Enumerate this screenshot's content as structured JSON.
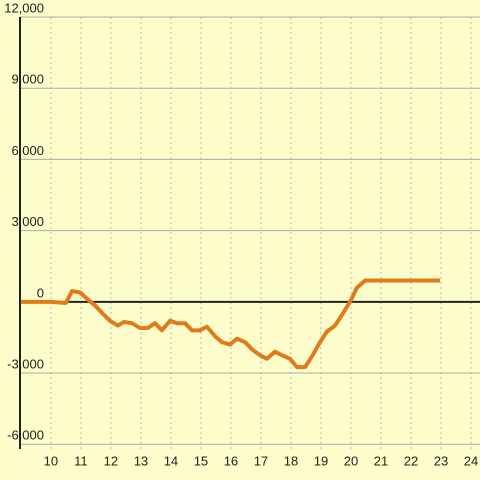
{
  "chart_data": {
    "type": "line",
    "x": [
      9.0,
      10.0,
      10.5,
      10.7,
      10.97,
      11.23,
      11.47,
      11.73,
      11.97,
      12.23,
      12.43,
      12.7,
      12.97,
      13.23,
      13.47,
      13.7,
      13.97,
      14.2,
      14.47,
      14.7,
      14.97,
      15.2,
      15.47,
      15.7,
      15.97,
      16.2,
      16.47,
      16.7,
      16.97,
      17.2,
      17.47,
      17.7,
      17.97,
      18.2,
      18.47,
      18.7,
      18.97,
      19.2,
      19.47,
      19.7,
      19.97,
      20.2,
      20.47,
      22.97
    ],
    "series": [
      {
        "color": "#e07b1c",
        "values": [
          0,
          0,
          -50,
          450,
          400,
          100,
          -150,
          -500,
          -800,
          -1000,
          -850,
          -900,
          -1100,
          -1100,
          -900,
          -1200,
          -800,
          -900,
          -900,
          -1200,
          -1200,
          -1050,
          -1450,
          -1700,
          -1800,
          -1550,
          -1700,
          -2000,
          -2250,
          -2400,
          -2100,
          -2250,
          -2400,
          -2750,
          -2750,
          -2300,
          -1700,
          -1250,
          -1000,
          -550,
          0,
          600,
          900,
          900
        ]
      }
    ],
    "xlim": [
      8.97,
      24.3
    ],
    "xticks": [
      10,
      11,
      12,
      13,
      14,
      15,
      16,
      17,
      18,
      19,
      20,
      21,
      22,
      23,
      24
    ],
    "ylim": [
      -6200,
      12000
    ],
    "yticks": [
      {
        "value": -6000,
        "label": "-6,000"
      },
      {
        "value": -3000,
        "label": "-3,000"
      },
      0,
      {
        "value": 3000,
        "label": "3,000"
      },
      {
        "value": 6000,
        "label": "6,000"
      },
      {
        "value": 9000,
        "label": "9,000"
      },
      {
        "value": 12000,
        "label": "12,000"
      }
    ],
    "grid": true
  }
}
